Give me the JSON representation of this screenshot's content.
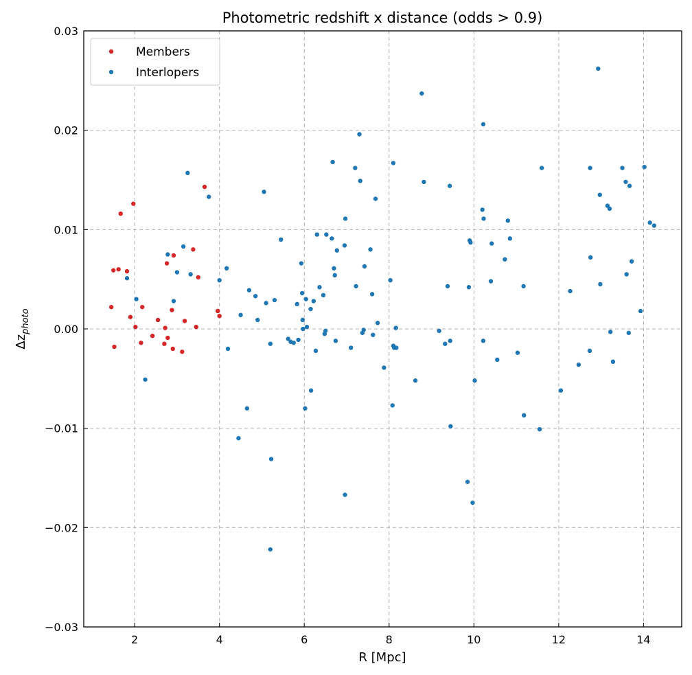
{
  "chart_data": {
    "type": "scatter",
    "title": "Photometric redshift x distance (odds > 0.9)",
    "xlabel": "R [Mpc]",
    "ylabel": "Δz",
    "ylabel_sub": "photo",
    "xlim": [
      0.8,
      14.9
    ],
    "ylim": [
      -0.03,
      0.03
    ],
    "xticks": [
      2,
      4,
      6,
      8,
      10,
      12,
      14
    ],
    "yticks": [
      -0.03,
      -0.02,
      -0.01,
      0.0,
      0.01,
      0.02,
      0.03
    ],
    "xtick_labels": [
      "2",
      "4",
      "6",
      "8",
      "10",
      "12",
      "14"
    ],
    "ytick_labels": [
      "−0.03",
      "−0.02",
      "−0.01",
      "0.00",
      "0.01",
      "0.02",
      "0.03"
    ],
    "grid": true,
    "legend": "upper-left",
    "series": [
      {
        "name": "Members",
        "color": "#d62728",
        "points": [
          [
            1.45,
            0.0022
          ],
          [
            1.5,
            0.0059
          ],
          [
            1.52,
            -0.0018
          ],
          [
            1.62,
            0.006
          ],
          [
            1.67,
            0.0116
          ],
          [
            1.82,
            0.0058
          ],
          [
            1.9,
            0.0012
          ],
          [
            1.97,
            0.0126
          ],
          [
            2.02,
            0.0002
          ],
          [
            2.15,
            -0.0014
          ],
          [
            2.18,
            0.0022
          ],
          [
            2.42,
            -0.0007
          ],
          [
            2.55,
            0.0009
          ],
          [
            2.7,
            -0.0015
          ],
          [
            2.72,
            0.0001
          ],
          [
            2.76,
            0.0066
          ],
          [
            2.78,
            -0.0009
          ],
          [
            2.88,
            0.0019
          ],
          [
            2.9,
            -0.002
          ],
          [
            2.92,
            0.0074
          ],
          [
            3.12,
            -0.0023
          ],
          [
            3.18,
            0.0008
          ],
          [
            3.38,
            0.008
          ],
          [
            3.45,
            0.0002
          ],
          [
            3.5,
            0.0052
          ],
          [
            3.65,
            0.0143
          ],
          [
            3.96,
            0.0018
          ],
          [
            4.0,
            0.0013
          ]
        ]
      },
      {
        "name": "Interlopers",
        "color": "#1f77b4",
        "points": [
          [
            1.82,
            0.0051
          ],
          [
            2.04,
            0.003
          ],
          [
            2.25,
            -0.0051
          ],
          [
            2.78,
            0.0075
          ],
          [
            2.92,
            0.0028
          ],
          [
            3.0,
            0.0057
          ],
          [
            3.15,
            0.0083
          ],
          [
            3.25,
            0.0157
          ],
          [
            3.32,
            0.0055
          ],
          [
            3.75,
            0.0133
          ],
          [
            4.0,
            0.0049
          ],
          [
            4.17,
            0.0061
          ],
          [
            4.2,
            -0.002
          ],
          [
            4.45,
            -0.011
          ],
          [
            4.5,
            0.0014
          ],
          [
            4.65,
            -0.008
          ],
          [
            4.7,
            0.0039
          ],
          [
            4.85,
            0.0033
          ],
          [
            4.9,
            0.0009
          ],
          [
            5.05,
            0.0138
          ],
          [
            5.1,
            0.0026
          ],
          [
            5.2,
            -0.0015
          ],
          [
            5.22,
            -0.0131
          ],
          [
            5.2,
            -0.0222
          ],
          [
            5.3,
            0.0029
          ],
          [
            5.45,
            0.009
          ],
          [
            5.62,
            -0.001
          ],
          [
            5.68,
            -0.0013
          ],
          [
            5.75,
            -0.0014
          ],
          [
            5.83,
            0.0025
          ],
          [
            5.86,
            -0.0011
          ],
          [
            5.93,
            0.0066
          ],
          [
            5.95,
            0.0036
          ],
          [
            5.96,
            0.0009
          ],
          [
            5.97,
            0.0
          ],
          [
            6.02,
            -0.008
          ],
          [
            6.04,
            0.003
          ],
          [
            6.06,
            0.0002
          ],
          [
            6.15,
            0.002
          ],
          [
            6.16,
            -0.0062
          ],
          [
            6.22,
            0.0028
          ],
          [
            6.27,
            -0.0022
          ],
          [
            6.3,
            0.0095
          ],
          [
            6.36,
            0.0042
          ],
          [
            6.45,
            0.0034
          ],
          [
            6.48,
            -0.0005
          ],
          [
            6.5,
            -0.0002
          ],
          [
            6.52,
            0.0095
          ],
          [
            6.65,
            0.0091
          ],
          [
            6.67,
            0.0168
          ],
          [
            6.7,
            0.0061
          ],
          [
            6.72,
            0.0054
          ],
          [
            6.74,
            -0.0012
          ],
          [
            6.77,
            0.0079
          ],
          [
            6.95,
            0.0084
          ],
          [
            6.96,
            -0.0167
          ],
          [
            6.97,
            0.0111
          ],
          [
            7.1,
            -0.0019
          ],
          [
            7.2,
            0.0162
          ],
          [
            7.22,
            0.0043
          ],
          [
            7.3,
            0.0196
          ],
          [
            7.32,
            0.0149
          ],
          [
            7.37,
            -0.0004
          ],
          [
            7.4,
            -0.0001
          ],
          [
            7.42,
            0.0063
          ],
          [
            7.56,
            0.008
          ],
          [
            7.6,
            0.0035
          ],
          [
            7.62,
            -0.0006
          ],
          [
            7.68,
            0.0131
          ],
          [
            7.73,
            0.0006
          ],
          [
            7.88,
            -0.0039
          ],
          [
            8.03,
            0.0049
          ],
          [
            8.08,
            -0.0077
          ],
          [
            8.1,
            -0.0017
          ],
          [
            8.12,
            -0.0019
          ],
          [
            8.1,
            0.0167
          ],
          [
            8.17,
            -0.0019
          ],
          [
            8.16,
            0.0001
          ],
          [
            8.62,
            -0.0052
          ],
          [
            8.77,
            0.0237
          ],
          [
            8.82,
            0.0148
          ],
          [
            9.18,
            -0.0002
          ],
          [
            9.32,
            -0.0015
          ],
          [
            9.38,
            0.0043
          ],
          [
            9.43,
            0.0144
          ],
          [
            9.44,
            -0.0012
          ],
          [
            9.45,
            -0.0098
          ],
          [
            9.85,
            -0.0154
          ],
          [
            9.88,
            0.0042
          ],
          [
            9.9,
            0.0089
          ],
          [
            9.92,
            0.0087
          ],
          [
            9.97,
            -0.0175
          ],
          [
            10.02,
            -0.0052
          ],
          [
            10.2,
            0.012
          ],
          [
            10.22,
            -0.0012
          ],
          [
            10.22,
            0.0206
          ],
          [
            10.23,
            0.0111
          ],
          [
            10.4,
            0.0048
          ],
          [
            10.42,
            0.0086
          ],
          [
            10.55,
            -0.0031
          ],
          [
            10.73,
            0.007
          ],
          [
            10.8,
            0.0109
          ],
          [
            10.85,
            0.0091
          ],
          [
            11.03,
            -0.0024
          ],
          [
            11.17,
            0.0043
          ],
          [
            11.18,
            -0.0087
          ],
          [
            11.55,
            -0.0101
          ],
          [
            11.6,
            0.0162
          ],
          [
            12.05,
            -0.0062
          ],
          [
            12.27,
            0.0038
          ],
          [
            12.47,
            -0.0036
          ],
          [
            12.73,
            -0.0022
          ],
          [
            12.74,
            0.0162
          ],
          [
            12.75,
            0.0072
          ],
          [
            12.93,
            0.0262
          ],
          [
            12.97,
            0.0135
          ],
          [
            12.98,
            0.0045
          ],
          [
            13.15,
            0.0124
          ],
          [
            13.2,
            0.0121
          ],
          [
            13.22,
            -0.0003
          ],
          [
            13.28,
            -0.0033
          ],
          [
            13.5,
            0.0162
          ],
          [
            13.58,
            0.0148
          ],
          [
            13.6,
            0.0055
          ],
          [
            13.65,
            -0.0004
          ],
          [
            13.67,
            0.0144
          ],
          [
            13.72,
            0.0068
          ],
          [
            13.93,
            0.0018
          ],
          [
            14.02,
            0.0163
          ],
          [
            14.15,
            0.0107
          ],
          [
            14.25,
            0.0104
          ]
        ]
      }
    ]
  }
}
